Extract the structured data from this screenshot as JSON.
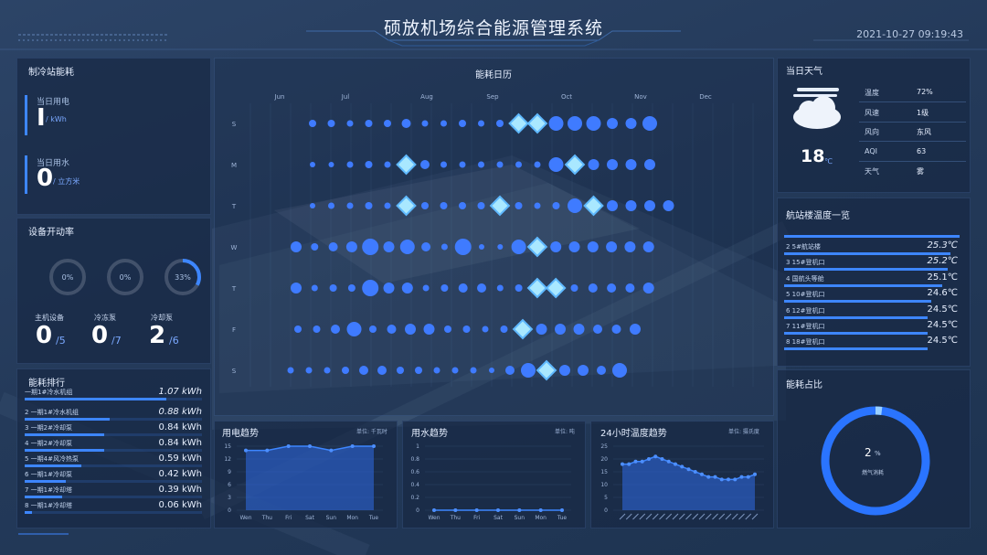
{
  "header": {
    "title": "硕放机场综合能源管理系统",
    "datetime": "2021-10-27 09:19:43"
  },
  "station": {
    "title": "制冷站能耗",
    "power_label": "当日用电",
    "power_value": "I",
    "power_unit": "/ kWh",
    "water_label": "当日用水",
    "water_value": "0",
    "water_unit": "/ 立方米"
  },
  "equipment": {
    "title": "设备开动率",
    "gauges": [
      {
        "label": "0%",
        "fraction": 0
      },
      {
        "label": "0%",
        "fraction": 0
      },
      {
        "label": "33%",
        "fraction": 0.33
      }
    ],
    "counts": [
      {
        "name": "主机设备",
        "value": "0",
        "total": "/5"
      },
      {
        "name": "冷冻泵",
        "value": "0",
        "total": "/7"
      },
      {
        "name": "冷却泵",
        "value": "2",
        "total": "/6"
      }
    ]
  },
  "ranking": {
    "title": "能耗排行",
    "items": [
      {
        "name": "一期1#冷水机组",
        "value": "1.07 kWh",
        "fraction": 0.8
      },
      {
        "name": "2 一期1#冷水机组",
        "value": "0.88 kWh",
        "fraction": 0.48
      },
      {
        "name": "3 一期2#冷却泵",
        "value": "0.84 kWh",
        "fraction": 0.45
      },
      {
        "name": "4 一期2#冷却泵",
        "value": "0.84 kWh",
        "fraction": 0.45
      },
      {
        "name": "5 一期4#风冷热泵",
        "value": "0.59 kWh",
        "fraction": 0.32
      },
      {
        "name": "6 一期1#冷却泵",
        "value": "0.42 kWh",
        "fraction": 0.23
      },
      {
        "name": "7 一期1#冷却塔",
        "value": "0.39 kWh",
        "fraction": 0.21
      },
      {
        "name": "8 一期1#冷却塔",
        "value": "0.06 kWh",
        "fraction": 0.04
      }
    ]
  },
  "calendar": {
    "title": "能耗日历",
    "months": [
      "Jun",
      "Jul",
      "Aug",
      "Sep",
      "Oct",
      "Nov",
      "Dec"
    ],
    "days": [
      "S",
      "M",
      "T",
      "W",
      "T",
      "F",
      "S"
    ]
  },
  "weather": {
    "title": "当日天气",
    "temp": "18",
    "temp_unit": "℃",
    "icon": "cloud-icon",
    "items": [
      {
        "label": "温度",
        "value": "72%"
      },
      {
        "label": "风速",
        "value": "1级"
      },
      {
        "label": "风向",
        "value": "东风"
      },
      {
        "label": "AQI",
        "value": "63"
      },
      {
        "label": "天气",
        "value": "雾"
      }
    ]
  },
  "terminal": {
    "title": "航站楼温度一览",
    "items": [
      {
        "name": "2 5#航站楼",
        "value": "25.3℃",
        "fraction": 0.95
      },
      {
        "name": "3 15#登机口",
        "value": "25.2℃",
        "fraction": 0.93
      },
      {
        "name": "4 国航头等舱",
        "value": "25.1℃",
        "fraction": 0.9
      },
      {
        "name": "5 10#登机口",
        "value": "24.6℃",
        "fraction": 0.84
      },
      {
        "name": "6 12#登机口",
        "value": "24.5℃",
        "fraction": 0.82
      },
      {
        "name": "7 11#登机口",
        "value": "24.5℃",
        "fraction": 0.82
      },
      {
        "name": "8 18#登机口",
        "value": "24.5℃",
        "fraction": 0.82
      }
    ]
  },
  "ratio": {
    "title": "能耗占比",
    "value": "2",
    "unit": "%",
    "label": "燃气消耗",
    "fraction": 0.02
  },
  "power_trend": {
    "title": "用电趋势",
    "unit": "单位: 千瓦时"
  },
  "water_trend": {
    "title": "用水趋势",
    "unit": "单位: 吨"
  },
  "temp_trend": {
    "title": "24小时温度趋势",
    "unit": "单位: 摄氏度"
  },
  "chart_data": [
    {
      "type": "area",
      "title": "用电趋势",
      "categories": [
        "Wen",
        "Thu",
        "Fri",
        "Sat",
        "Sun",
        "Mon",
        "Tue"
      ],
      "values": [
        14,
        14,
        15,
        15,
        14,
        15,
        15
      ],
      "ylim": [
        0,
        15
      ],
      "yticks": [
        0,
        3,
        6,
        9,
        12,
        15
      ]
    },
    {
      "type": "line",
      "title": "用水趋势",
      "categories": [
        "Wen",
        "Thu",
        "Fri",
        "Sat",
        "Sun",
        "Mon",
        "Tue"
      ],
      "values": [
        0,
        0,
        0,
        0,
        0,
        0,
        0
      ],
      "ylim": [
        0,
        1
      ],
      "yticks": [
        0,
        0.2,
        0.4,
        0.6,
        0.8,
        1
      ]
    },
    {
      "type": "area",
      "title": "24小时温度趋势",
      "values": [
        18,
        18,
        19,
        19,
        20,
        21,
        20,
        19,
        18,
        17,
        16,
        15,
        14,
        13,
        13,
        12,
        12,
        12,
        13,
        13,
        14
      ],
      "ylim": [
        0,
        25
      ],
      "yticks": [
        0,
        5,
        10,
        15,
        20,
        25
      ]
    }
  ]
}
